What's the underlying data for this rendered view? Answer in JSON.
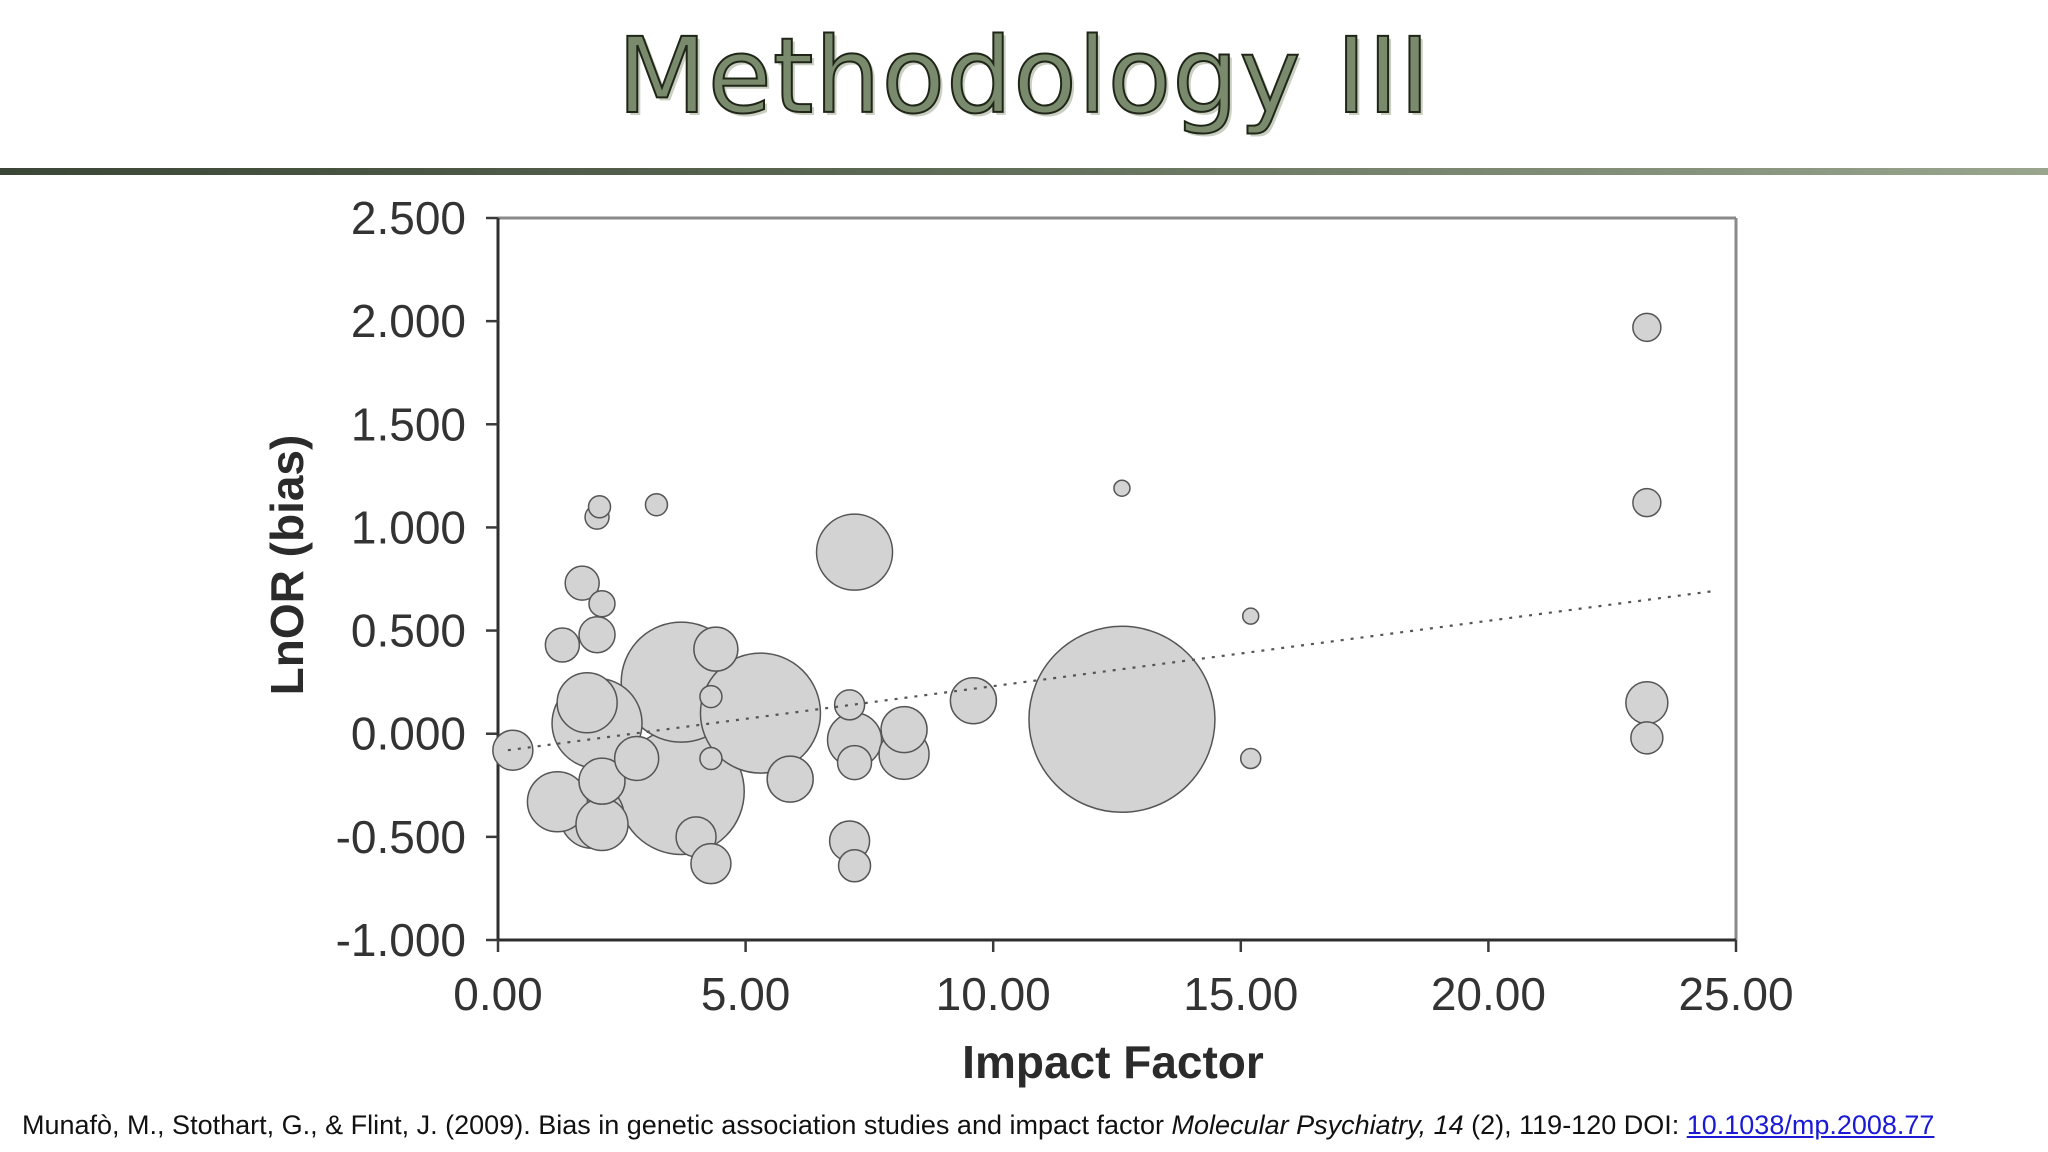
{
  "slide": {
    "title": "Methodology III"
  },
  "citation": {
    "authors": "Munafò, M., Stothart, G., & Flint, J. (2009). Bias in genetic association studies and impact factor ",
    "journal": "Molecular Psychiatry, 14",
    "issue_pages": " (2), 119-120 DOI: ",
    "doi": "10.1038/mp.2008.77"
  },
  "chart_data": {
    "type": "scatter",
    "xlabel": "Impact Factor",
    "ylabel": "LnOR (bias)",
    "xlim": [
      0,
      25
    ],
    "ylim": [
      -1,
      2.5
    ],
    "x_ticks": [
      "0.00",
      "5.00",
      "10.00",
      "15.00",
      "20.00",
      "25.00"
    ],
    "y_ticks": [
      "2.500",
      "2.000",
      "1.500",
      "1.000",
      "0.500",
      "0.000",
      "-0.500",
      "-1.000"
    ],
    "grid": "horizontal",
    "bubble_color": "#d3d3d3",
    "bubble_stroke": "#555555",
    "trendline": {
      "style": "dotted",
      "x": [
        0.2,
        24.5
      ],
      "y": [
        -0.08,
        0.69
      ]
    },
    "points": [
      {
        "x": 0.3,
        "y": -0.08,
        "size": 20
      },
      {
        "x": 1.2,
        "y": -0.33,
        "size": 30
      },
      {
        "x": 1.3,
        "y": 0.43,
        "size": 17
      },
      {
        "x": 1.7,
        "y": 0.73,
        "size": 17
      },
      {
        "x": 1.8,
        "y": 0.15,
        "size": 30
      },
      {
        "x": 1.9,
        "y": -0.4,
        "size": 32
      },
      {
        "x": 2.0,
        "y": 1.05,
        "size": 12
      },
      {
        "x": 2.0,
        "y": 0.48,
        "size": 18
      },
      {
        "x": 2.0,
        "y": 0.05,
        "size": 45
      },
      {
        "x": 2.05,
        "y": 1.1,
        "size": 11
      },
      {
        "x": 2.1,
        "y": 0.63,
        "size": 13
      },
      {
        "x": 2.1,
        "y": -0.23,
        "size": 23
      },
      {
        "x": 2.1,
        "y": -0.44,
        "size": 26
      },
      {
        "x": 2.8,
        "y": -0.12,
        "size": 22
      },
      {
        "x": 3.2,
        "y": 1.11,
        "size": 11
      },
      {
        "x": 3.7,
        "y": 0.25,
        "size": 60
      },
      {
        "x": 3.7,
        "y": -0.28,
        "size": 63
      },
      {
        "x": 4.0,
        "y": -0.5,
        "size": 20
      },
      {
        "x": 4.3,
        "y": -0.12,
        "size": 11
      },
      {
        "x": 4.3,
        "y": -0.63,
        "size": 20
      },
      {
        "x": 4.3,
        "y": 0.18,
        "size": 11
      },
      {
        "x": 4.4,
        "y": 0.41,
        "size": 22
      },
      {
        "x": 5.3,
        "y": 0.1,
        "size": 60
      },
      {
        "x": 5.9,
        "y": -0.22,
        "size": 23
      },
      {
        "x": 7.1,
        "y": 0.14,
        "size": 15
      },
      {
        "x": 7.1,
        "y": -0.52,
        "size": 20
      },
      {
        "x": 7.2,
        "y": -0.64,
        "size": 16
      },
      {
        "x": 7.2,
        "y": -0.14,
        "size": 17
      },
      {
        "x": 7.2,
        "y": -0.03,
        "size": 27
      },
      {
        "x": 7.2,
        "y": 0.88,
        "size": 38
      },
      {
        "x": 8.2,
        "y": -0.1,
        "size": 25
      },
      {
        "x": 8.2,
        "y": 0.02,
        "size": 23
      },
      {
        "x": 9.6,
        "y": 0.16,
        "size": 23
      },
      {
        "x": 12.6,
        "y": 0.07,
        "size": 93
      },
      {
        "x": 12.6,
        "y": 1.19,
        "size": 8
      },
      {
        "x": 15.2,
        "y": 0.57,
        "size": 8
      },
      {
        "x": 15.2,
        "y": -0.12,
        "size": 10
      },
      {
        "x": 23.2,
        "y": 1.97,
        "size": 14
      },
      {
        "x": 23.2,
        "y": 1.12,
        "size": 14
      },
      {
        "x": 23.2,
        "y": 0.15,
        "size": 21
      },
      {
        "x": 23.2,
        "y": -0.02,
        "size": 16
      }
    ]
  }
}
